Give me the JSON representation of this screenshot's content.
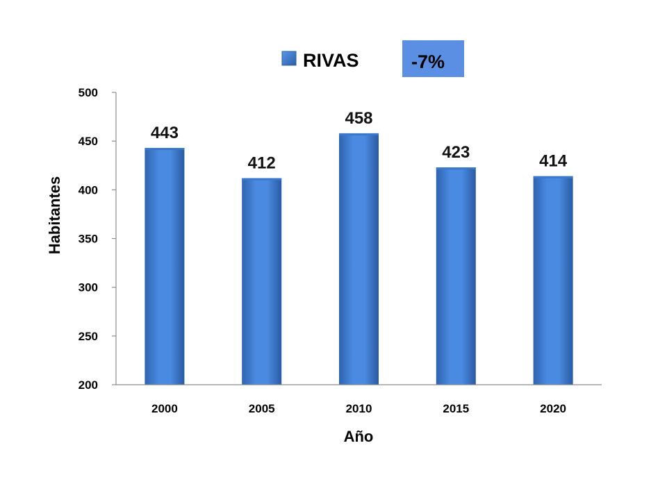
{
  "chart_data": {
    "type": "bar",
    "categories": [
      "2000",
      "2005",
      "2010",
      "2015",
      "2020"
    ],
    "series": [
      {
        "name": "RIVAS",
        "values": [
          443,
          412,
          458,
          423,
          414
        ]
      }
    ],
    "xlabel": "Año",
    "ylabel": "Habitantes",
    "ylim": [
      200,
      500
    ],
    "yticks": [
      200,
      250,
      300,
      350,
      400,
      450,
      500
    ],
    "grid": false,
    "legend": "top-center",
    "data_labels": true
  },
  "badge": {
    "text": "-7%"
  },
  "colors": {
    "bar_light": "#4f8fe0",
    "bar_dark": "#2a5da8",
    "bar_top": "#3a78cc",
    "badge_bg": "#5b8fe3",
    "axis": "#8c8c8c"
  }
}
